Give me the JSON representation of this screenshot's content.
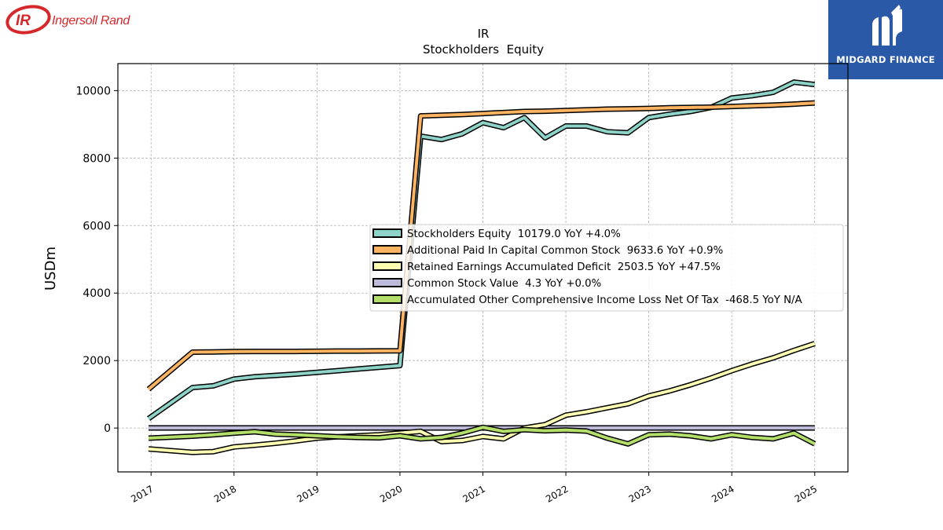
{
  "header": {
    "company_logo_text": "Ingersoll Rand",
    "company_logo_mark": "IR",
    "brand_logo_text": "MIDGARD FINANCE"
  },
  "chart_data": {
    "type": "line",
    "title": "IR",
    "subtitle": "Stockholders  Equity",
    "ylabel": "USDm",
    "xlabel": "",
    "ylim": [
      -1300,
      10800
    ],
    "xlim": [
      2016.6,
      2025.4
    ],
    "yticks": [
      0,
      2000,
      4000,
      6000,
      8000,
      10000
    ],
    "xticks": [
      2017,
      2018,
      2019,
      2020,
      2021,
      2022,
      2023,
      2024,
      2025
    ],
    "grid": true,
    "legend_position": "center-right",
    "series": [
      {
        "name": "Stockholders Equity",
        "legend": "Stockholders Equity  10179.0 YoY +4.0%",
        "color": "#8dd3c7",
        "x": [
          2016.97,
          2017.5,
          2017.75,
          2018.0,
          2018.25,
          2018.5,
          2018.75,
          2019.0,
          2019.25,
          2019.5,
          2019.75,
          2020.0,
          2020.25,
          2020.5,
          2020.75,
          2021.0,
          2021.25,
          2021.5,
          2021.75,
          2022.0,
          2022.25,
          2022.5,
          2022.75,
          2023.0,
          2023.25,
          2023.5,
          2023.75,
          2024.0,
          2024.25,
          2024.5,
          2024.75,
          2025.0
        ],
        "values": [
          280,
          1200,
          1250,
          1450,
          1520,
          1560,
          1600,
          1650,
          1700,
          1750,
          1800,
          1850,
          8650,
          8550,
          8720,
          9050,
          8900,
          9200,
          8600,
          8950,
          8950,
          8780,
          8750,
          9200,
          9300,
          9380,
          9500,
          9780,
          9850,
          9950,
          10250,
          10179
        ]
      },
      {
        "name": "Additional Paid In Capital Common Stock",
        "legend": "Additional Paid In Capital Common Stock  9633.6 YoY +0.9%",
        "color": "#fdb462",
        "x": [
          2016.97,
          2017.5,
          2017.75,
          2018.0,
          2018.25,
          2018.5,
          2018.75,
          2019.0,
          2019.25,
          2019.5,
          2019.75,
          2020.0,
          2020.25,
          2020.5,
          2020.75,
          2021.0,
          2021.25,
          2021.5,
          2021.75,
          2022.0,
          2022.25,
          2022.5,
          2022.75,
          2023.0,
          2023.25,
          2023.5,
          2023.75,
          2024.0,
          2024.25,
          2024.5,
          2024.75,
          2025.0
        ],
        "values": [
          1150,
          2250,
          2255,
          2265,
          2270,
          2270,
          2270,
          2275,
          2280,
          2280,
          2285,
          2290,
          9250,
          9270,
          9290,
          9320,
          9350,
          9380,
          9390,
          9410,
          9430,
          9450,
          9460,
          9470,
          9490,
          9500,
          9510,
          9530,
          9550,
          9570,
          9600,
          9633.6
        ]
      },
      {
        "name": "Retained Earnings Accumulated Deficit",
        "legend": "Retained Earnings Accumulated Deficit  2503.5 YoY +47.5%",
        "color": "#ffffb3",
        "x": [
          2016.97,
          2017.5,
          2017.75,
          2018.0,
          2018.25,
          2018.5,
          2018.75,
          2019.0,
          2019.25,
          2019.5,
          2019.75,
          2020.0,
          2020.25,
          2020.5,
          2020.75,
          2021.0,
          2021.25,
          2021.5,
          2021.75,
          2022.0,
          2022.25,
          2022.5,
          2022.75,
          2023.0,
          2023.25,
          2023.5,
          2023.75,
          2024.0,
          2024.25,
          2024.5,
          2024.75,
          2025.0
        ],
        "values": [
          -620,
          -720,
          -700,
          -560,
          -510,
          -450,
          -380,
          -300,
          -260,
          -230,
          -200,
          -150,
          -100,
          -400,
          -370,
          -250,
          -320,
          0,
          100,
          380,
          480,
          600,
          720,
          950,
          1100,
          1280,
          1480,
          1700,
          1900,
          2080,
          2300,
          2503.5
        ]
      },
      {
        "name": "Common Stock Value",
        "legend": "Common Stock Value  4.3 YoY +0.0%",
        "color": "#bebada",
        "x": [
          2016.97,
          2018.0,
          2019.0,
          2020.0,
          2021.0,
          2022.0,
          2023.0,
          2024.0,
          2025.0
        ],
        "values": [
          4.3,
          4.3,
          4.3,
          4.3,
          4.3,
          4.3,
          4.3,
          4.3,
          4.3
        ]
      },
      {
        "name": "Accumulated Other Comprehensive Income Loss Net Of Tax",
        "legend": "Accumulated Other Comprehensive Income Loss Net Of Tax  -468.5 YoY N/A",
        "color": "#b3de69",
        "x": [
          2016.97,
          2017.5,
          2017.75,
          2018.0,
          2018.25,
          2018.5,
          2018.75,
          2019.0,
          2019.25,
          2019.5,
          2019.75,
          2020.0,
          2020.25,
          2020.5,
          2020.75,
          2021.0,
          2021.25,
          2021.5,
          2021.75,
          2022.0,
          2022.25,
          2022.5,
          2022.75,
          2023.0,
          2023.25,
          2023.5,
          2023.75,
          2024.0,
          2024.25,
          2024.5,
          2024.75,
          2025.0
        ],
        "values": [
          -300,
          -240,
          -200,
          -150,
          -110,
          -180,
          -200,
          -230,
          -260,
          -280,
          -290,
          -230,
          -320,
          -280,
          -150,
          20,
          -100,
          -50,
          -80,
          -60,
          -90,
          -300,
          -470,
          -200,
          -180,
          -230,
          -320,
          -200,
          -280,
          -320,
          -150,
          -468.5
        ]
      }
    ]
  }
}
